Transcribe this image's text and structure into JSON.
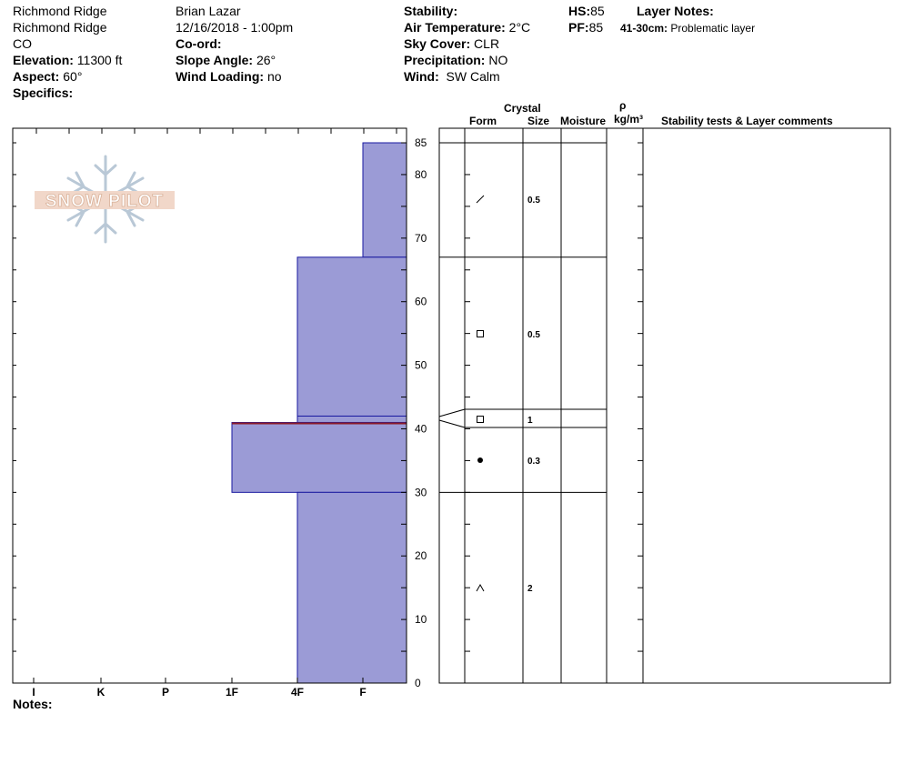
{
  "header": {
    "location": "Richmond Ridge",
    "site": "Richmond Ridge",
    "state": "CO",
    "elevation_label": "Elevation:",
    "elevation": "11300 ft",
    "aspect_label": "Aspect:",
    "aspect": "60°",
    "specifics_label": "Specifics:",
    "observer": "Brian Lazar",
    "datetime": "12/16/2018 - 1:00pm",
    "coord_label": "Co-ord:",
    "slope_label": "Slope Angle:",
    "slope": "26°",
    "wind_loading_label": "Wind Loading:",
    "wind_loading": "no",
    "stability_label": "Stability:",
    "air_temp_label": "Air Temperature:",
    "air_temp": "2°C",
    "sky_label": "Sky Cover:",
    "sky": "CLR",
    "precip_label": "Precipitation:",
    "precip": "NO",
    "wind_label": "Wind:",
    "wind": "SW Calm",
    "hs_label": "HS:",
    "hs": "85",
    "pf_label": "PF:",
    "pf": "85",
    "layer_notes_label": "Layer Notes:",
    "layer_note_range": "41-30cm:",
    "layer_note_text": "Problematic layer"
  },
  "columns": {
    "crystal": "Crystal",
    "form": "Form",
    "size": "Size",
    "moisture": "Moisture",
    "rho": "ρ",
    "density_unit": "kg/m³",
    "stability": "Stability tests & Layer comments"
  },
  "logo_text": "SNOW PILOT",
  "notes_label": "Notes:",
  "hardness_ticks": [
    "I",
    "K",
    "P",
    "1F",
    "4F",
    "F"
  ],
  "depth_ticks": [
    "85",
    "80",
    "70",
    "60",
    "50",
    "40",
    "30",
    "20",
    "10",
    "0"
  ],
  "colors": {
    "layer_fill": "#9b9bd6",
    "layer_stroke": "#1a1aa0",
    "weak_line": "#8b1a2a"
  },
  "chart_data": {
    "type": "snow-profile",
    "depth_unit": "cm",
    "depth_range": [
      0,
      85
    ],
    "hardness_scale": [
      "I",
      "K",
      "P",
      "1F",
      "4F",
      "F"
    ],
    "layers": [
      {
        "top": 85,
        "bottom": 67,
        "hardness": "F"
      },
      {
        "top": 67,
        "bottom": 42,
        "hardness": "4F"
      },
      {
        "top": 42,
        "bottom": 41,
        "hardness": "4F"
      },
      {
        "top": 41,
        "bottom": 30,
        "hardness": "1F"
      },
      {
        "top": 30,
        "bottom": 0,
        "hardness": "4F"
      }
    ],
    "weak_layer_depth": 41,
    "crystals": [
      {
        "top": 85,
        "bottom": 67,
        "form": "precipitation-particles",
        "size": "0.5"
      },
      {
        "top": 67,
        "bottom": 43,
        "form": "faceted",
        "size": "0.5"
      },
      {
        "top": 43,
        "bottom": 40,
        "form": "faceted",
        "size": "1"
      },
      {
        "top": 40,
        "bottom": 30,
        "form": "rounded",
        "size": "0.3"
      },
      {
        "top": 30,
        "bottom": 0,
        "form": "depth-hoar",
        "size": "2"
      }
    ]
  }
}
